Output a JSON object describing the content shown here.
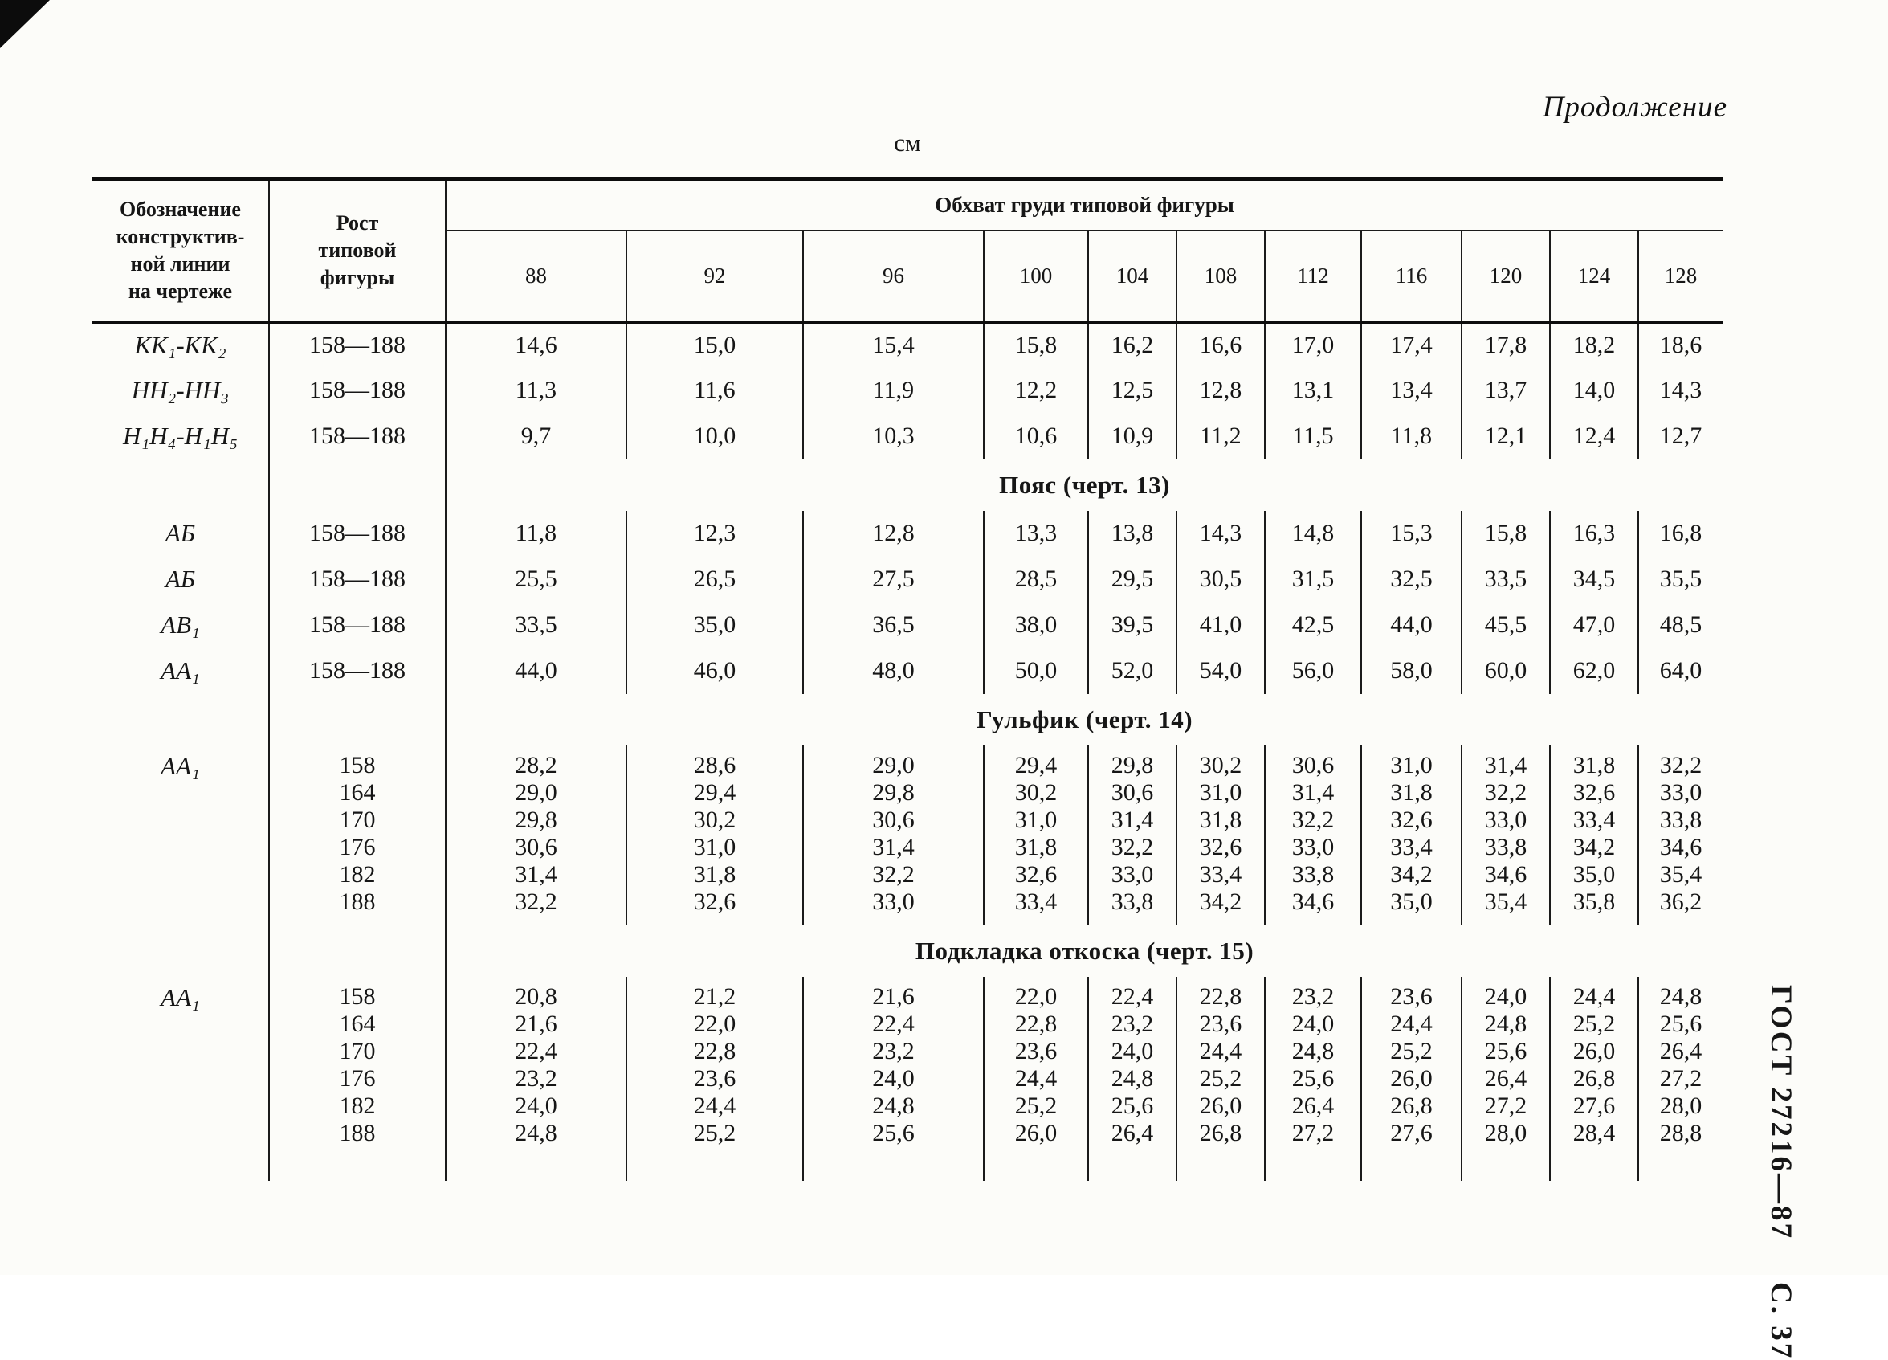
{
  "page": {
    "continuation": "Продолжение",
    "unit": "см",
    "gost_label": "ГОСТ 27216—87",
    "page_label": "С. 37"
  },
  "table": {
    "header": {
      "col1": "Обозначение\nконструктив-\nной линии\nна чертеже",
      "col2": "Рост\nтиповой\nфигуры",
      "span": "Обхват груди типовой фигуры",
      "sizes": [
        "88",
        "92",
        "96",
        "100",
        "104",
        "108",
        "112",
        "116",
        "120",
        "124",
        "128"
      ]
    },
    "sections": [
      {
        "title": "",
        "rows": [
          {
            "label": "КК₁-КК₂",
            "heights": [
              "158—188"
            ],
            "values": [
              [
                "14,6",
                "15,0",
                "15,4",
                "15,8",
                "16,2",
                "16,6",
                "17,0",
                "17,4",
                "17,8",
                "18,2",
                "18,6"
              ]
            ]
          },
          {
            "label": "НН₂-НН₃",
            "heights": [
              "158—188"
            ],
            "values": [
              [
                "11,3",
                "11,6",
                "11,9",
                "12,2",
                "12,5",
                "12,8",
                "13,1",
                "13,4",
                "13,7",
                "14,0",
                "14,3"
              ]
            ]
          },
          {
            "label": "Н₁Н₄-Н₁Н₅",
            "heights": [
              "158—188"
            ],
            "values": [
              [
                "9,7",
                "10,0",
                "10,3",
                "10,6",
                "10,9",
                "11,2",
                "11,5",
                "11,8",
                "12,1",
                "12,4",
                "12,7"
              ]
            ]
          }
        ]
      },
      {
        "title": "Пояс (черт. 13)",
        "rows": [
          {
            "label": "АБ",
            "heights": [
              "158—188"
            ],
            "values": [
              [
                "11,8",
                "12,3",
                "12,8",
                "13,3",
                "13,8",
                "14,3",
                "14,8",
                "15,3",
                "15,8",
                "16,3",
                "16,8"
              ]
            ]
          },
          {
            "label": "АБ",
            "heights": [
              "158—188"
            ],
            "values": [
              [
                "25,5",
                "26,5",
                "27,5",
                "28,5",
                "29,5",
                "30,5",
                "31,5",
                "32,5",
                "33,5",
                "34,5",
                "35,5"
              ]
            ]
          },
          {
            "label": "АВ₁",
            "heights": [
              "158—188"
            ],
            "values": [
              [
                "33,5",
                "35,0",
                "36,5",
                "38,0",
                "39,5",
                "41,0",
                "42,5",
                "44,0",
                "45,5",
                "47,0",
                "48,5"
              ]
            ]
          },
          {
            "label": "АА₁",
            "heights": [
              "158—188"
            ],
            "values": [
              [
                "44,0",
                "46,0",
                "48,0",
                "50,0",
                "52,0",
                "54,0",
                "56,0",
                "58,0",
                "60,0",
                "62,0",
                "64,0"
              ]
            ]
          }
        ]
      },
      {
        "title": "Гульфик (черт. 14)",
        "rows": [
          {
            "label": "АА₁",
            "heights": [
              "158",
              "164",
              "170",
              "176",
              "182",
              "188"
            ],
            "values": [
              [
                "28,2",
                "28,6",
                "29,0",
                "29,4",
                "29,8",
                "30,2",
                "30,6",
                "31,0",
                "31,4",
                "31,8",
                "32,2"
              ],
              [
                "29,0",
                "29,4",
                "29,8",
                "30,2",
                "30,6",
                "31,0",
                "31,4",
                "31,8",
                "32,2",
                "32,6",
                "33,0"
              ],
              [
                "29,8",
                "30,2",
                "30,6",
                "31,0",
                "31,4",
                "31,8",
                "32,2",
                "32,6",
                "33,0",
                "33,4",
                "33,8"
              ],
              [
                "30,6",
                "31,0",
                "31,4",
                "31,8",
                "32,2",
                "32,6",
                "33,0",
                "33,4",
                "33,8",
                "34,2",
                "34,6"
              ],
              [
                "31,4",
                "31,8",
                "32,2",
                "32,6",
                "33,0",
                "33,4",
                "33,8",
                "34,2",
                "34,6",
                "35,0",
                "35,4"
              ],
              [
                "32,2",
                "32,6",
                "33,0",
                "33,4",
                "33,8",
                "34,2",
                "34,6",
                "35,0",
                "35,4",
                "35,8",
                "36,2"
              ]
            ]
          }
        ]
      },
      {
        "title": "Подкладка откоска (черт. 15)",
        "rows": [
          {
            "label": "АА₁",
            "heights": [
              "158",
              "164",
              "170",
              "176",
              "182",
              "188"
            ],
            "values": [
              [
                "20,8",
                "21,2",
                "21,6",
                "22,0",
                "22,4",
                "22,8",
                "23,2",
                "23,6",
                "24,0",
                "24,4",
                "24,8"
              ],
              [
                "21,6",
                "22,0",
                "22,4",
                "22,8",
                "23,2",
                "23,6",
                "24,0",
                "24,4",
                "24,8",
                "25,2",
                "25,6"
              ],
              [
                "22,4",
                "22,8",
                "23,2",
                "23,6",
                "24,0",
                "24,4",
                "24,8",
                "25,2",
                "25,6",
                "26,0",
                "26,4"
              ],
              [
                "23,2",
                "23,6",
                "24,0",
                "24,4",
                "24,8",
                "25,2",
                "25,6",
                "26,0",
                "26,4",
                "26,8",
                "27,2"
              ],
              [
                "24,0",
                "24,4",
                "24,8",
                "25,2",
                "25,6",
                "26,0",
                "26,4",
                "26,8",
                "27,2",
                "27,6",
                "28,0"
              ],
              [
                "24,8",
                "25,2",
                "25,6",
                "26,0",
                "26,4",
                "26,8",
                "27,2",
                "27,6",
                "28,0",
                "28,4",
                "28,8"
              ]
            ]
          }
        ]
      }
    ]
  }
}
